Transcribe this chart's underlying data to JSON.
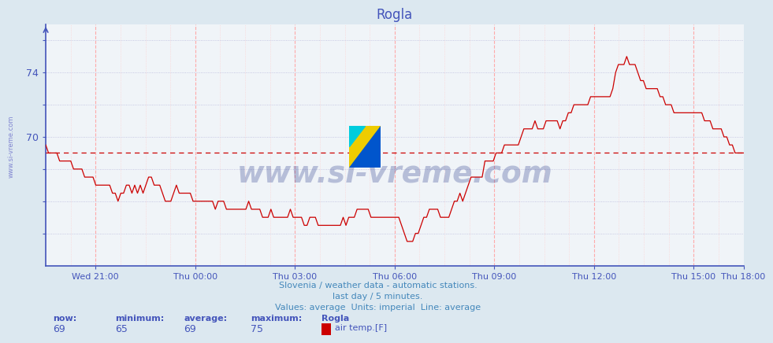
{
  "title": "Rogla",
  "title_color": "#4455bb",
  "bg_color": "#dce8f0",
  "plot_bg_color": "#f0f4f8",
  "line_color": "#cc0000",
  "avg_line_color": "#cc0000",
  "grid_h_color": "#bbbbdd",
  "grid_v_dashed_color": "#ffaaaa",
  "grid_v_dotted_color": "#ffcccc",
  "ylabel_color": "#4455bb",
  "xlabel_color": "#4455bb",
  "axis_color": "#4455bb",
  "ylim": [
    62,
    77
  ],
  "ytick_vals": [
    64,
    66,
    68,
    70,
    72,
    74,
    76
  ],
  "ytick_labels": [
    "",
    "",
    "",
    "70",
    "",
    "74",
    ""
  ],
  "avg_value": 69.0,
  "now": 69,
  "minimum": 65,
  "average": 69,
  "maximum": 75,
  "footer_text1": "Slovenia / weather data - automatic stations.",
  "footer_text2": "last day / 5 minutes.",
  "footer_text3": "Values: average  Units: imperial  Line: average",
  "footer_color": "#4488bb",
  "watermark": "www.si-vreme.com",
  "watermark_color": "#223388",
  "sidebar_text": "www.si-vreme.com",
  "sidebar_color": "#4444bb",
  "xtick_labels": [
    "Wed 21:00",
    "Thu 00:00",
    "Thu 03:00",
    "Thu 06:00",
    "Thu 09:00",
    "Thu 12:00",
    "Thu 15:00",
    "Thu 18:00"
  ],
  "stats_label_color": "#4455bb",
  "stats_value_color": "#4455bb",
  "legend_color": "#cc0000"
}
